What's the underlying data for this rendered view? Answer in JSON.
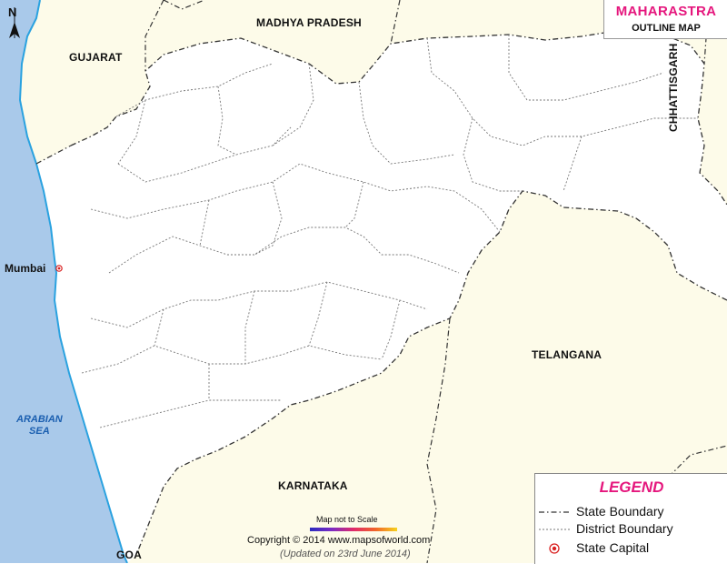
{
  "title": {
    "main": "MAHARASTRA",
    "sub": "OUTLINE MAP"
  },
  "compass": {
    "letter": "N"
  },
  "regions": {
    "madhya_pradesh": "MADHYA PRADESH",
    "gujarat": "GUJARAT",
    "chhattisgarh": "CHHATTISGARH",
    "telangana": "TELANGANA",
    "karnataka": "KARNATAKA",
    "goa": "GOA"
  },
  "sea": {
    "line1": "ARABIAN",
    "line2": "SEA"
  },
  "capital": {
    "name": "Mumbai"
  },
  "legend": {
    "title": "LEGEND",
    "items": [
      {
        "label": "State Boundary"
      },
      {
        "label": "District Boundary"
      },
      {
        "label": "State Capital"
      }
    ]
  },
  "footer": {
    "scale_note": "Map not to Scale",
    "copyright": "Copyright © 2014 www.mapsofworld.com",
    "updated": "(Updated on 23rd June 2014)"
  },
  "colors": {
    "sea": "#a9c9ea",
    "land_neighbor": "#fdfbe9",
    "land_state": "#ffffff",
    "coast": "#2aa2e0",
    "title_accent": "#e5177d",
    "capital": "#d92020"
  }
}
